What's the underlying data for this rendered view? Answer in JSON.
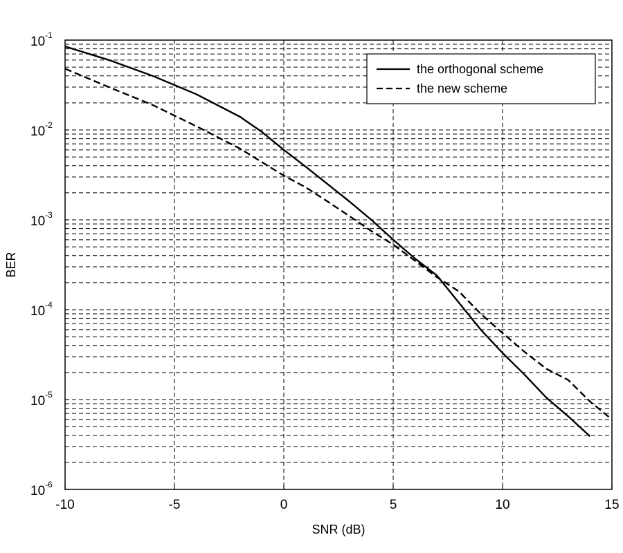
{
  "chart_data": {
    "type": "line",
    "xlabel": "SNR (dB)",
    "ylabel": "BER",
    "xlim": [
      -10,
      15
    ],
    "ylim": [
      1e-06,
      0.1
    ],
    "y_scale": "log",
    "grid": true,
    "x_grid_style": "dashed",
    "y_grid_style": "dashed",
    "x_ticks": [
      -10,
      -5,
      0,
      5,
      10,
      15
    ],
    "x_tick_labels": [
      "-10",
      "-5",
      "0",
      "5",
      "10",
      "15"
    ],
    "y_ticks": [
      {
        "value": 1e-06,
        "base": "10",
        "exp": "-6"
      },
      {
        "value": 1e-05,
        "base": "10",
        "exp": "-5"
      },
      {
        "value": 0.0001,
        "base": "10",
        "exp": "-4"
      },
      {
        "value": 0.001,
        "base": "10",
        "exp": "-3"
      },
      {
        "value": 0.01,
        "base": "10",
        "exp": "-2"
      },
      {
        "value": 0.1,
        "base": "10",
        "exp": "-1"
      }
    ],
    "legend": {
      "placement": "top-right",
      "entries": [
        {
          "label": "the orthogonal scheme",
          "style": "solid"
        },
        {
          "label": "the new scheme",
          "style": "dashed"
        }
      ]
    },
    "series": [
      {
        "name": "the orthogonal scheme",
        "style": "solid",
        "color": "#000000",
        "x": [
          -10,
          -8,
          -6,
          -4,
          -2,
          -1,
          0,
          1,
          2,
          3,
          4,
          5,
          6,
          7,
          8,
          9,
          10,
          11,
          12,
          13,
          14
        ],
        "y": [
          0.085,
          0.06,
          0.04,
          0.025,
          0.014,
          0.0095,
          0.006,
          0.0039,
          0.0025,
          0.0016,
          0.001,
          0.0006,
          0.00037,
          0.00024,
          0.00012,
          6e-05,
          3.3e-05,
          1.9e-05,
          1.05e-05,
          6.5e-06,
          3.9e-06
        ]
      },
      {
        "name": "the new scheme",
        "style": "dashed",
        "color": "#000000",
        "x": [
          -10,
          -8,
          -6,
          -4,
          -2,
          0,
          1,
          2,
          3,
          4,
          5,
          6,
          7,
          8,
          9,
          10,
          11,
          12,
          13,
          14,
          15
        ],
        "y": [
          0.048,
          0.03,
          0.019,
          0.011,
          0.0062,
          0.0031,
          0.0023,
          0.0016,
          0.0011,
          0.00075,
          0.00053,
          0.00035,
          0.00023,
          0.00016,
          9e-05,
          5.5e-05,
          3.4e-05,
          2.2e-05,
          1.65e-05,
          9.5e-06,
          6e-06
        ]
      }
    ]
  }
}
